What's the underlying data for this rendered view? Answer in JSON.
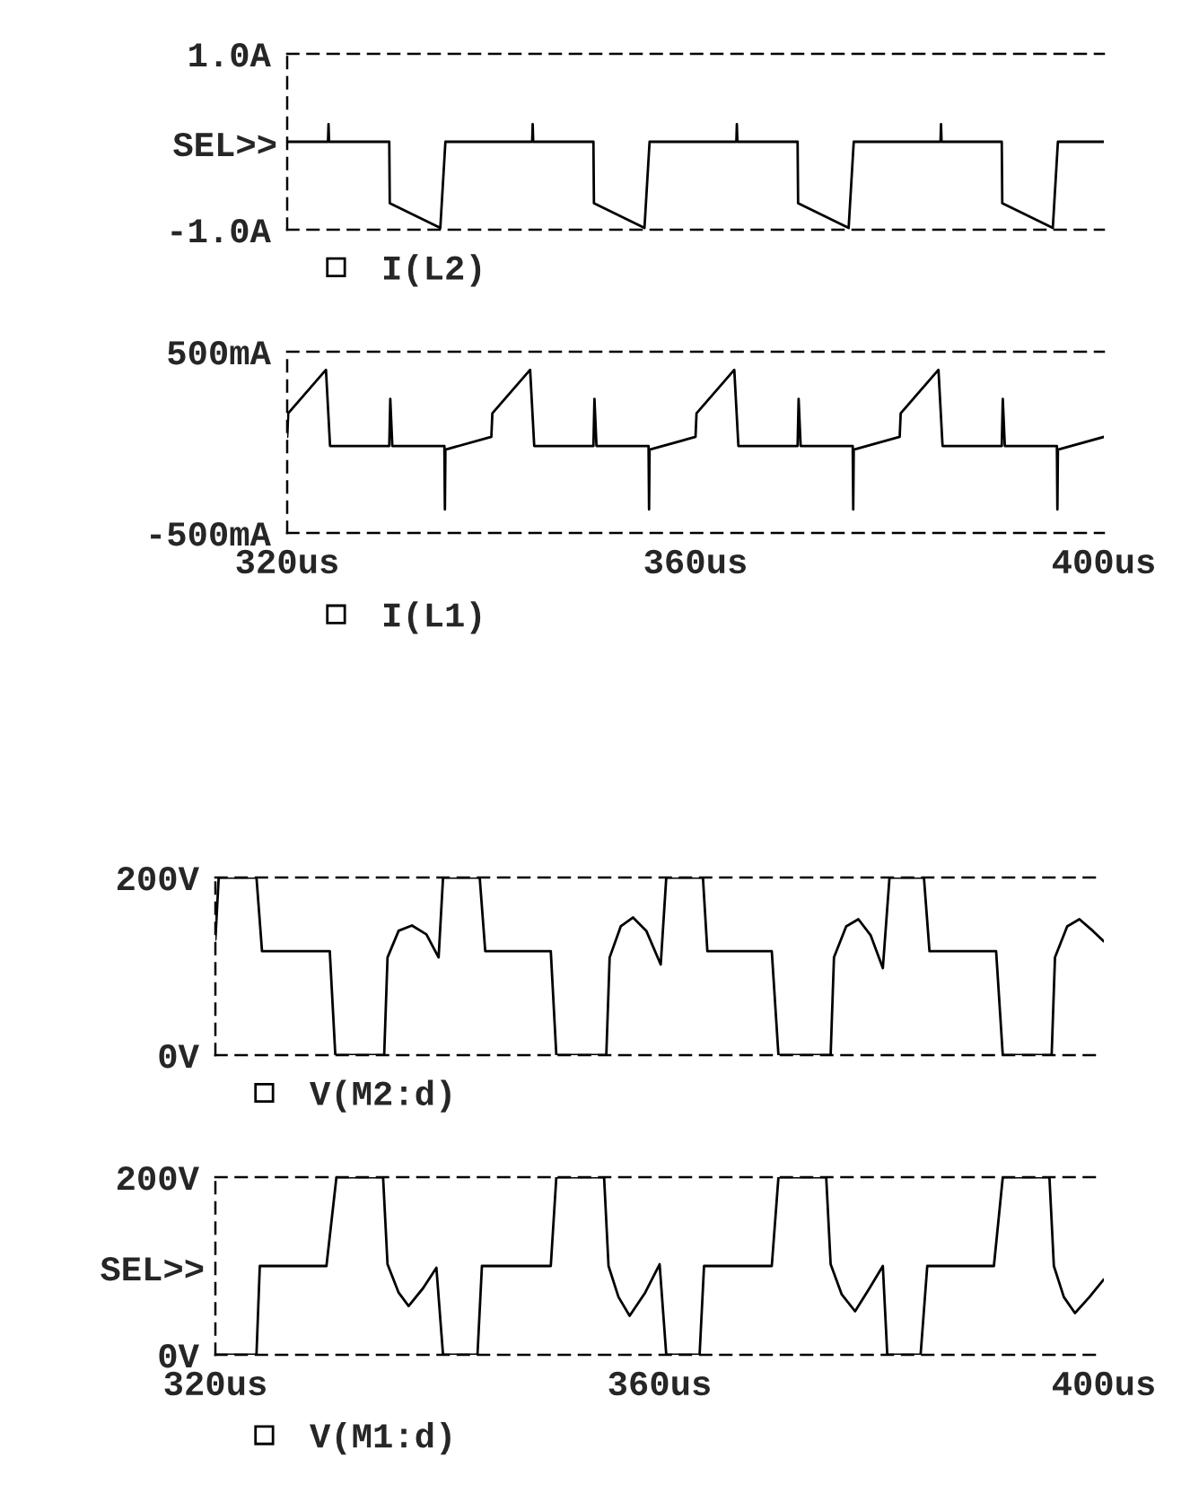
{
  "chart_data": [
    {
      "type": "line",
      "tick_labels": "y",
      "legend": "bottom",
      "xlim": [
        320,
        400
      ],
      "ylim": [
        -1,
        1
      ],
      "yticks": [
        {
          "value": -1,
          "label": "-1.0A"
        },
        {
          "value": 1,
          "label": "1.0A"
        }
      ],
      "annotations": [
        "SEL>>"
      ],
      "series": [
        {
          "name": "I(L2)",
          "color": "#000000",
          "x": [
            320,
            324,
            324.05,
            324.1,
            330,
            330.05,
            335,
            335.5,
            340,
            344,
            344.05,
            344.1,
            350,
            350.05,
            355,
            355.5,
            360,
            364,
            364.05,
            364.1,
            370,
            370.05,
            375,
            375.5,
            380,
            384,
            384.05,
            384.1,
            390,
            390.05,
            395,
            395.5,
            400
          ],
          "values": [
            0,
            0,
            0.2,
            0,
            0,
            -0.7,
            -0.98,
            0,
            0,
            0,
            0.2,
            0,
            0,
            -0.7,
            -0.98,
            0,
            0,
            0,
            0.2,
            0,
            0,
            -0.7,
            -0.98,
            0,
            0,
            0,
            0.2,
            0,
            0,
            -0.7,
            -0.98,
            0,
            0
          ]
        }
      ]
    },
    {
      "type": "line",
      "legend": "bottom",
      "xlim": [
        320,
        400
      ],
      "xticks": [
        {
          "value": 320,
          "label": "320us"
        },
        {
          "value": 360,
          "label": "360us"
        },
        {
          "value": 400,
          "label": "400us"
        }
      ],
      "ylim": [
        -500,
        500
      ],
      "yticks": [
        {
          "value": -500,
          "label": "-500mA"
        },
        {
          "value": 500,
          "label": "500mA"
        }
      ],
      "series": [
        {
          "name": "I(L1)",
          "color": "#000000",
          "x": [
            320,
            320.1,
            323.8,
            324.2,
            330,
            330.1,
            330.3,
            335.4,
            335.45,
            335.5,
            340,
            340.1,
            343.8,
            344.2,
            350,
            350.1,
            350.3,
            355.4,
            355.45,
            355.5,
            360,
            360.1,
            363.8,
            364.2,
            370,
            370.1,
            370.3,
            375.4,
            375.45,
            375.5,
            380,
            380.1,
            383.8,
            384.2,
            390,
            390.1,
            390.3,
            395.4,
            395.45,
            395.5,
            400
          ],
          "values": [
            30,
            160,
            400,
            -20,
            -20,
            240,
            -20,
            -20,
            -370,
            -40,
            30,
            160,
            400,
            -20,
            -20,
            240,
            -20,
            -20,
            -370,
            -40,
            30,
            160,
            400,
            -20,
            -20,
            240,
            -20,
            -20,
            -370,
            -40,
            30,
            160,
            400,
            -20,
            -20,
            240,
            -20,
            -20,
            -370,
            -40,
            30
          ]
        }
      ]
    },
    {
      "type": "line",
      "tick_labels": "y",
      "legend": "bottom",
      "xlim": [
        320,
        400
      ],
      "ylim": [
        0,
        200
      ],
      "yticks": [
        {
          "value": 0,
          "label": "0V"
        },
        {
          "value": 200,
          "label": "200V"
        }
      ],
      "series": [
        {
          "name": "V(M2:d)",
          "color": "#000000",
          "x": [
            320,
            320.3,
            323.7,
            324.2,
            330.3,
            330.8,
            335.2,
            335.5,
            336.5,
            337.7,
            339,
            340.1,
            340.5,
            343.8,
            344.3,
            350.2,
            350.7,
            355.2,
            355.5,
            356.5,
            357.6,
            358.8,
            360.1,
            360.6,
            363.9,
            364.3,
            370.1,
            370.7,
            375.4,
            375.7,
            376.8,
            377.9,
            379,
            380.1,
            380.7,
            383.8,
            384.3,
            390.3,
            390.9,
            395.3,
            395.6,
            396.7,
            397.8,
            399,
            400
          ],
          "values": [
            130,
            200,
            200,
            117,
            117,
            0,
            0,
            110,
            140,
            146,
            136,
            110,
            200,
            200,
            117,
            117,
            0,
            0,
            110,
            145,
            155,
            140,
            102,
            200,
            200,
            117,
            117,
            0,
            0,
            110,
            145,
            153,
            135,
            98,
            200,
            200,
            117,
            117,
            0,
            0,
            110,
            145,
            153,
            140,
            128
          ]
        }
      ]
    },
    {
      "type": "line",
      "legend": "bottom",
      "xlim": [
        320,
        400
      ],
      "xticks": [
        {
          "value": 320,
          "label": "320us"
        },
        {
          "value": 360,
          "label": "360us"
        },
        {
          "value": 400,
          "label": "400us"
        }
      ],
      "ylim": [
        0,
        200
      ],
      "yticks": [
        {
          "value": 0,
          "label": "0V"
        },
        {
          "value": 200,
          "label": "200V"
        }
      ],
      "annotations": [
        "SEL>>"
      ],
      "series": [
        {
          "name": "V(M1:d)",
          "color": "#000000",
          "x": [
            320,
            323.7,
            324,
            330,
            330.9,
            335.1,
            335.5,
            336.5,
            337.4,
            338.7,
            339.9,
            340.5,
            343.6,
            344,
            350.2,
            350.7,
            355,
            355.4,
            356.3,
            357.3,
            358.7,
            360,
            360.6,
            363.6,
            364,
            370.1,
            370.7,
            375,
            375.4,
            376.4,
            377.6,
            378.9,
            380.1,
            380.5,
            383.5,
            384.1,
            390.1,
            390.9,
            395.1,
            395.5,
            396.4,
            397.4,
            398.7,
            400
          ],
          "values": [
            0,
            0,
            100,
            100,
            200,
            200,
            102,
            70,
            55,
            75,
            98,
            0,
            0,
            100,
            100,
            200,
            200,
            100,
            65,
            44,
            70,
            102,
            0,
            0,
            100,
            100,
            200,
            200,
            102,
            68,
            49,
            75,
            100,
            0,
            0,
            100,
            100,
            200,
            200,
            100,
            65,
            47,
            65,
            85
          ]
        }
      ]
    }
  ]
}
